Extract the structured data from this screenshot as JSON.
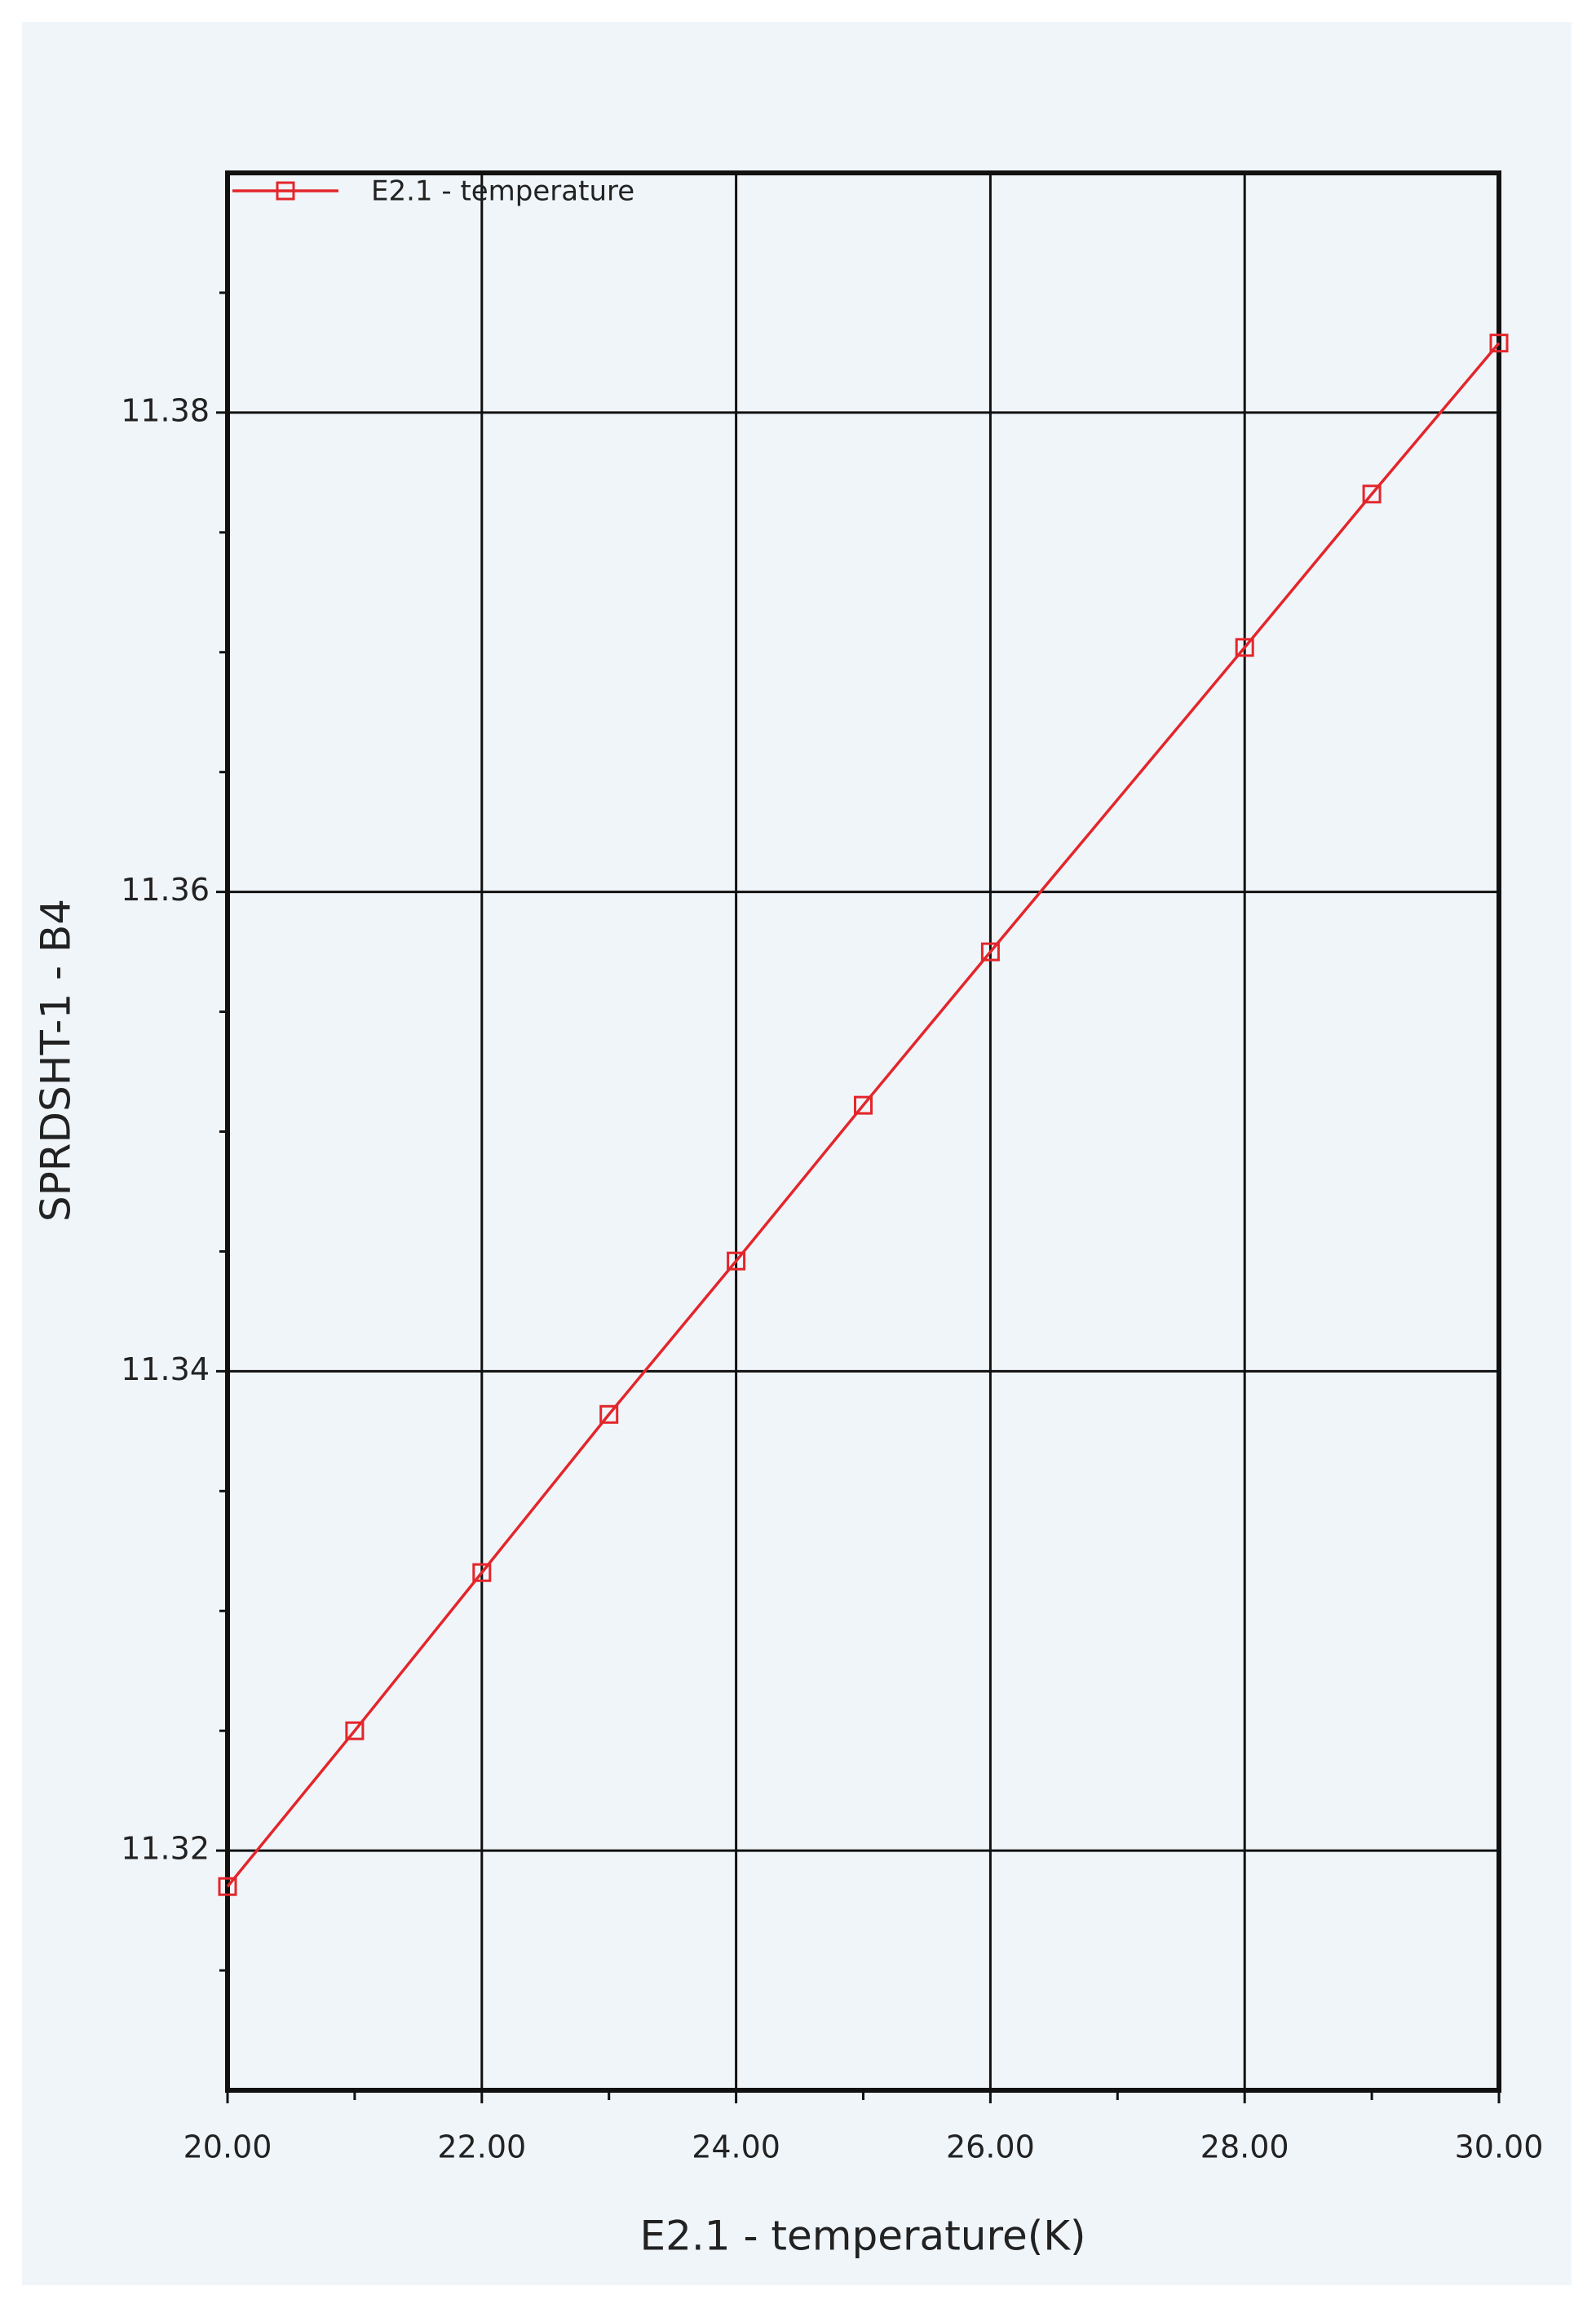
{
  "chart_data": {
    "type": "line",
    "legend": "E2.1 - temperature",
    "x_label": "E2.1 - temperature(K)",
    "y_label": "SPRDSHT-1 - B4",
    "x": [
      20,
      21,
      22,
      23,
      24,
      25,
      26,
      28,
      29,
      30
    ],
    "series": [
      {
        "name": "E2.1 - temperature",
        "color": "#e3262b",
        "values": [
          11.3185,
          11.325,
          11.3316,
          11.3382,
          11.3446,
          11.3511,
          11.3575,
          11.3702,
          11.3766,
          11.3829
        ]
      }
    ],
    "xlim": [
      20,
      30
    ],
    "xticks": [
      {
        "value": 20,
        "label": "20.00"
      },
      {
        "value": 22,
        "label": "22.00"
      },
      {
        "value": 24,
        "label": "24.00"
      },
      {
        "value": 26,
        "label": "26.00"
      },
      {
        "value": 28,
        "label": "28.00"
      },
      {
        "value": 30,
        "label": "30.00"
      }
    ],
    "xminor_ticks": [
      21,
      23,
      25,
      27,
      29
    ],
    "ylim": [
      11.31,
      11.39
    ],
    "yticks": [
      11.32,
      11.34,
      11.36,
      11.38
    ],
    "yminor_ticks": [
      11.315,
      11.325,
      11.33,
      11.335,
      11.345,
      11.35,
      11.355,
      11.365,
      11.37,
      11.375,
      11.385
    ],
    "grid": true,
    "legend_position": "top-left"
  }
}
